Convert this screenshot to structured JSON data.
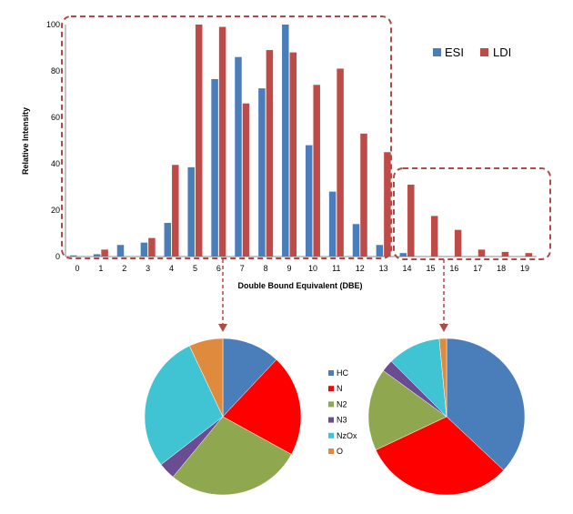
{
  "chart_data": [
    {
      "type": "bar",
      "title": "",
      "xlabel": "Double Bound Equivalent (DBE)",
      "ylabel": "Relative Intensity",
      "ylim": [
        0,
        100
      ],
      "yticks": [
        0,
        20,
        40,
        60,
        80,
        100
      ],
      "grid": false,
      "legend_position": "top-right",
      "categories": [
        "0",
        "1",
        "2",
        "3",
        "4",
        "5",
        "6",
        "7",
        "8",
        "9",
        "10",
        "11",
        "12",
        "13",
        "14",
        "15",
        "16",
        "17",
        "18",
        "19"
      ],
      "series": [
        {
          "name": "ESI",
          "color": "#4a7ebb",
          "values": [
            0.5,
            1,
            5,
            6,
            14.5,
            38.5,
            76.5,
            86,
            72.5,
            100,
            48,
            28,
            14,
            5,
            1.5,
            0,
            0,
            0,
            0,
            0
          ]
        },
        {
          "name": "LDI",
          "color": "#be4b48",
          "values": [
            0,
            3,
            0,
            8,
            39.5,
            100,
            99,
            66,
            89,
            88,
            74,
            81,
            53,
            45,
            31,
            17.5,
            11.5,
            3,
            2,
            1.5
          ]
        }
      ],
      "highlight_groups": [
        {
          "range": [
            "0",
            "13"
          ],
          "links_to": "pie-1"
        },
        {
          "range": [
            "14",
            "19"
          ],
          "links_to": "pie-2"
        }
      ]
    },
    {
      "type": "pie",
      "id": "pie-1",
      "labels": [
        "HC",
        "N",
        "N2",
        "N3",
        "NzOx",
        "O"
      ],
      "colors": [
        "#4a7ebb",
        "#ff0000",
        "#8fa850",
        "#6a4c93",
        "#40c4d4",
        "#e08a3e"
      ],
      "values": [
        12,
        21,
        28,
        3.5,
        28.5,
        7
      ]
    },
    {
      "type": "pie",
      "id": "pie-2",
      "labels": [
        "HC",
        "N",
        "N2",
        "N3",
        "NzOx",
        "O"
      ],
      "colors": [
        "#4a7ebb",
        "#ff0000",
        "#8fa850",
        "#6a4c93",
        "#40c4d4",
        "#e08a3e"
      ],
      "values": [
        37,
        31,
        17,
        2.5,
        11,
        1.5
      ]
    }
  ]
}
